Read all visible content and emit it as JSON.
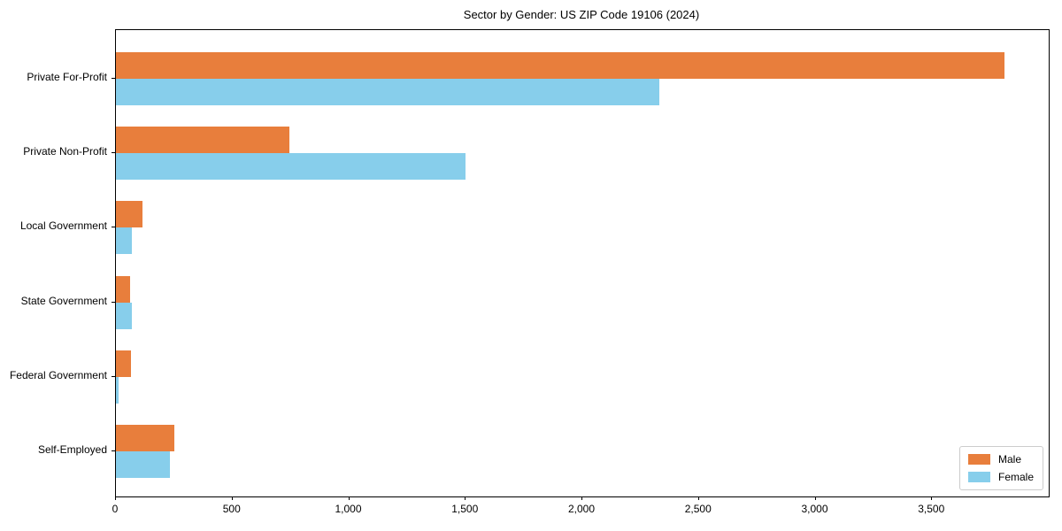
{
  "figure": {
    "title": "Sector by Gender: US ZIP Code 19106 (2024)"
  },
  "chart_data": {
    "type": "bar",
    "orientation": "horizontal",
    "title": "Sector by Gender: US ZIP Code 19106 (2024)",
    "categories": [
      "Private For-Profit",
      "Private Non-Profit",
      "Local Government",
      "State Government",
      "Federal Government",
      "Self-Employed"
    ],
    "series": [
      {
        "name": "Male",
        "color": "#E87E3C",
        "values": [
          3810,
          745,
          115,
          60,
          65,
          250
        ]
      },
      {
        "name": "Female",
        "color": "#87CEEB",
        "values": [
          2330,
          1500,
          70,
          70,
          10,
          230
        ]
      }
    ],
    "xlabel": "",
    "ylabel": "",
    "xlim": [
      0,
      4000
    ],
    "xticks": [
      0,
      500,
      1000,
      1500,
      2000,
      2500,
      3000,
      3500
    ],
    "xtick_labels": [
      "0",
      "500",
      "1,000",
      "1,500",
      "2,000",
      "2,500",
      "3,000",
      "3,500"
    ],
    "grid": false,
    "legend": {
      "position": "lower right",
      "labels": [
        "Male",
        "Female"
      ]
    }
  }
}
